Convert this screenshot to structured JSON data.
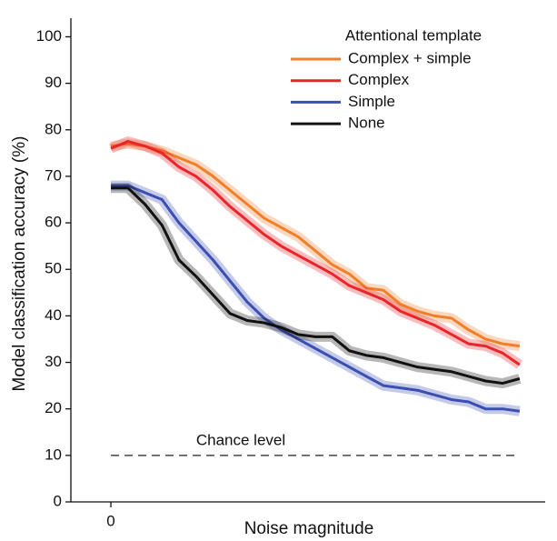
{
  "chart_data": {
    "type": "line",
    "x_label": "Noise magnitude",
    "y_label": "Model classification accuracy (%)",
    "legend_title": "Attentional template",
    "legend_position": "upper right",
    "x": [
      0,
      1,
      2,
      3,
      4,
      5,
      6,
      7,
      8,
      9,
      10,
      11,
      12,
      13,
      14,
      15,
      16,
      17,
      18,
      19,
      20,
      21,
      22,
      23,
      24
    ],
    "xlim": [
      -2.35,
      25.5
    ],
    "xticks": [
      0
    ],
    "ylim": [
      0,
      104
    ],
    "yticks": [
      0,
      10,
      20,
      30,
      40,
      50,
      60,
      70,
      80,
      90,
      100
    ],
    "series": [
      {
        "name": "Complex + simple",
        "color": "#f07f2a",
        "values": [
          76.5,
          77,
          76.5,
          75.5,
          74,
          72.5,
          70,
          67,
          64,
          61,
          59,
          57,
          54,
          51,
          49,
          46,
          45.5,
          42.5,
          41,
          40,
          39.5,
          37,
          35,
          34,
          33.5
        ]
      },
      {
        "name": "Complex",
        "color": "#e8262a",
        "values": [
          76,
          77.5,
          76.5,
          75,
          72,
          70,
          67,
          63.5,
          60.5,
          57.5,
          55,
          53,
          51,
          49,
          46.5,
          45,
          43.5,
          41,
          39.5,
          38,
          36,
          34,
          33.5,
          32,
          29.5
        ]
      },
      {
        "name": "Simple",
        "color": "#3a4fb0",
        "values": [
          68,
          68,
          66.5,
          65,
          60,
          56,
          52,
          47.5,
          43,
          39.5,
          37,
          35,
          33,
          31,
          29,
          27,
          25,
          24.5,
          24,
          23,
          22,
          21.5,
          20,
          20,
          19.5
        ]
      },
      {
        "name": "None",
        "color": "#111111",
        "values": [
          67.5,
          67.5,
          64,
          59.5,
          52,
          48.5,
          44.5,
          40.5,
          39,
          38.5,
          37.5,
          36,
          35.5,
          35.5,
          32.5,
          31.5,
          31,
          30,
          29,
          28.5,
          28,
          27,
          26,
          25.5,
          26.5
        ]
      }
    ],
    "reference_line": {
      "value": 10,
      "label": "Chance level"
    }
  }
}
